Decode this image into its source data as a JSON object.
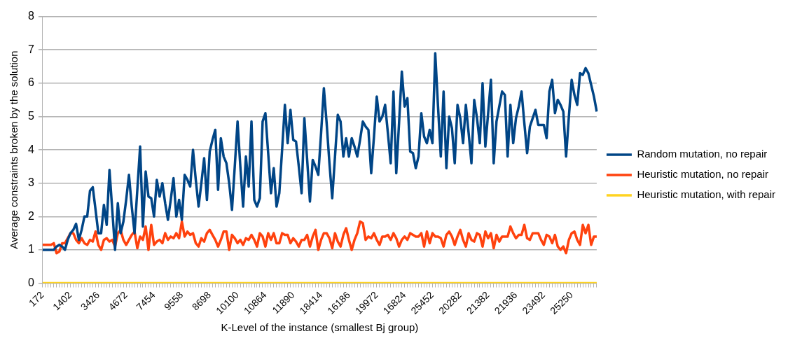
{
  "chart_data": {
    "type": "line",
    "xlabel": "K-Level of the instance (smallest Bj group)",
    "ylabel": "Average constraints broken by the solution",
    "categories": [
      "172",
      null,
      null,
      null,
      null,
      null,
      null,
      null,
      null,
      null,
      "1402",
      null,
      null,
      null,
      null,
      null,
      null,
      null,
      null,
      null,
      "3426",
      null,
      null,
      null,
      null,
      null,
      null,
      null,
      null,
      null,
      "4672",
      null,
      null,
      null,
      null,
      null,
      null,
      null,
      null,
      null,
      "7454",
      null,
      null,
      null,
      null,
      null,
      null,
      null,
      null,
      null,
      "9558",
      null,
      null,
      null,
      null,
      null,
      null,
      null,
      null,
      null,
      "8698",
      null,
      null,
      null,
      null,
      null,
      null,
      null,
      null,
      null,
      "10100",
      null,
      null,
      null,
      null,
      null,
      null,
      null,
      null,
      null,
      "10864",
      null,
      null,
      null,
      null,
      null,
      null,
      null,
      null,
      null,
      "11890",
      null,
      null,
      null,
      null,
      null,
      null,
      null,
      null,
      null,
      "18414",
      null,
      null,
      null,
      null,
      null,
      null,
      null,
      null,
      null,
      "16186",
      null,
      null,
      null,
      null,
      null,
      null,
      null,
      null,
      null,
      "19972",
      null,
      null,
      null,
      null,
      null,
      null,
      null,
      null,
      null,
      "16824",
      null,
      null,
      null,
      null,
      null,
      null,
      null,
      null,
      null,
      "25452",
      null,
      null,
      null,
      null,
      null,
      null,
      null,
      null,
      null,
      "20282",
      null,
      null,
      null,
      null,
      null,
      null,
      null,
      null,
      null,
      "21382",
      null,
      null,
      null,
      null,
      null,
      null,
      null,
      null,
      null,
      "21936",
      null,
      null,
      null,
      null,
      null,
      null,
      null,
      null,
      null,
      "23492",
      null,
      null,
      null,
      null,
      null,
      null,
      null,
      null,
      null,
      "25250",
      null,
      null,
      null,
      null,
      null,
      null,
      null,
      null,
      null
    ],
    "series": [
      {
        "name": "Random mutation, no repair",
        "color": "#004586",
        "values": [
          1.0,
          1.0,
          1.0,
          1.0,
          1.0,
          1.1,
          1.15,
          1.1,
          1.0,
          1.3,
          1.5,
          1.6,
          1.78,
          1.3,
          1.6,
          2.0,
          2.0,
          2.77,
          2.88,
          2.2,
          1.5,
          1.5,
          2.35,
          1.75,
          3.4,
          2.2,
          1.0,
          2.4,
          1.5,
          1.85,
          2.5,
          3.25,
          2.3,
          1.5,
          2.8,
          4.1,
          1.7,
          3.35,
          2.6,
          2.55,
          2.0,
          3.1,
          2.6,
          3.0,
          2.4,
          1.9,
          2.5,
          3.15,
          2.0,
          2.5,
          1.9,
          3.25,
          3.1,
          2.9,
          4.0,
          3.1,
          2.3,
          3.0,
          3.75,
          2.5,
          3.95,
          4.3,
          4.6,
          2.8,
          4.35,
          3.8,
          3.6,
          3.0,
          2.2,
          3.5,
          4.85,
          3.5,
          2.3,
          3.8,
          2.9,
          4.85,
          2.5,
          2.3,
          2.55,
          4.85,
          5.1,
          3.9,
          2.7,
          3.45,
          2.3,
          2.7,
          4.0,
          5.35,
          4.2,
          5.2,
          4.3,
          4.25,
          3.5,
          2.7,
          4.95,
          3.7,
          2.45,
          3.7,
          3.5,
          3.25,
          4.5,
          5.85,
          4.8,
          3.6,
          2.55,
          3.8,
          5.05,
          4.85,
          3.8,
          4.35,
          3.8,
          4.35,
          4.1,
          3.8,
          4.3,
          4.85,
          4.7,
          4.6,
          3.3,
          4.4,
          5.6,
          4.85,
          5.0,
          5.35,
          4.5,
          3.6,
          5.75,
          3.3,
          4.8,
          6.35,
          5.3,
          5.55,
          3.95,
          3.9,
          3.45,
          3.8,
          5.1,
          4.4,
          4.2,
          4.6,
          4.2,
          6.9,
          5.3,
          3.8,
          5.75,
          3.45,
          5.0,
          4.65,
          3.6,
          5.35,
          4.95,
          4.2,
          5.35,
          4.5,
          3.6,
          5.5,
          4.95,
          4.2,
          6.0,
          4.1,
          5.1,
          6.1,
          3.6,
          4.85,
          5.3,
          5.75,
          5.65,
          3.8,
          5.35,
          4.2,
          4.95,
          5.3,
          5.75,
          4.8,
          3.9,
          4.7,
          4.95,
          5.2,
          4.75,
          4.75,
          4.75,
          4.35,
          5.75,
          6.1,
          5.1,
          5.5,
          5.35,
          5.15,
          3.8,
          5.0,
          6.1,
          5.65,
          5.35,
          6.3,
          6.25,
          6.45,
          6.3,
          5.95,
          5.6,
          5.15
        ]
      },
      {
        "name": "Heuristic mutation, no repair",
        "color": "#ff420e",
        "values": [
          1.15,
          1.15,
          1.15,
          1.15,
          1.2,
          0.9,
          0.95,
          1.2,
          1.2,
          1.35,
          1.5,
          1.5,
          1.3,
          1.2,
          1.35,
          1.2,
          1.15,
          1.3,
          1.25,
          1.55,
          1.15,
          1.0,
          1.3,
          1.35,
          1.25,
          1.3,
          1.1,
          1.5,
          1.6,
          1.3,
          1.15,
          1.3,
          1.45,
          1.55,
          1.05,
          1.4,
          1.3,
          1.7,
          1.0,
          1.75,
          1.15,
          1.25,
          1.3,
          1.2,
          1.5,
          1.3,
          1.4,
          1.35,
          1.5,
          1.35,
          1.85,
          1.4,
          1.55,
          1.45,
          1.5,
          1.2,
          1.1,
          1.35,
          1.25,
          1.5,
          1.6,
          1.45,
          1.3,
          1.1,
          1.3,
          1.55,
          1.55,
          1.0,
          1.45,
          1.35,
          1.2,
          1.3,
          1.15,
          1.35,
          1.3,
          1.45,
          1.3,
          1.1,
          1.5,
          1.4,
          1.1,
          1.5,
          1.3,
          1.5,
          1.2,
          1.2,
          1.5,
          1.45,
          1.45,
          1.2,
          1.35,
          1.25,
          1.1,
          1.3,
          1.3,
          1.45,
          1.1,
          1.4,
          1.6,
          1.0,
          1.3,
          1.5,
          1.5,
          1.35,
          1.05,
          1.5,
          1.25,
          1.1,
          1.45,
          1.65,
          1.3,
          1.0,
          1.3,
          1.5,
          1.85,
          1.8,
          1.3,
          1.4,
          1.35,
          1.5,
          1.3,
          1.15,
          1.4,
          1.4,
          1.45,
          1.3,
          1.5,
          1.35,
          1.1,
          1.3,
          1.4,
          1.3,
          1.5,
          1.45,
          1.4,
          1.4,
          1.5,
          1.1,
          1.55,
          1.2,
          1.5,
          1.4,
          1.4,
          1.35,
          1.1,
          1.45,
          1.55,
          1.4,
          1.15,
          1.4,
          1.6,
          1.3,
          1.1,
          1.5,
          1.3,
          1.25,
          1.5,
          1.45,
          1.1,
          1.55,
          1.35,
          1.5,
          1.05,
          1.45,
          1.25,
          1.4,
          1.4,
          1.4,
          1.7,
          1.5,
          1.35,
          1.45,
          1.45,
          1.75,
          1.35,
          1.3,
          1.5,
          1.5,
          1.5,
          1.3,
          1.15,
          1.45,
          1.4,
          1.2,
          1.45,
          1.1,
          1.0,
          1.1,
          0.9,
          1.3,
          1.5,
          1.55,
          1.3,
          1.15,
          1.75,
          1.5,
          1.75,
          1.15,
          1.4,
          1.4
        ]
      },
      {
        "name": "Heuristic mutation, with repair",
        "color": "#ffd320",
        "values": [
          0,
          0,
          0,
          0,
          0,
          0,
          0,
          0,
          0,
          0,
          0,
          0,
          0,
          0,
          0,
          0,
          0,
          0,
          0,
          0,
          0,
          0,
          0,
          0,
          0,
          0,
          0,
          0,
          0,
          0,
          0,
          0,
          0,
          0,
          0,
          0,
          0,
          0,
          0,
          0,
          0,
          0,
          0,
          0,
          0,
          0,
          0,
          0,
          0,
          0,
          0,
          0,
          0,
          0,
          0,
          0,
          0,
          0,
          0,
          0,
          0,
          0,
          0,
          0,
          0,
          0,
          0,
          0,
          0,
          0,
          0,
          0,
          0,
          0,
          0,
          0,
          0,
          0,
          0,
          0,
          0,
          0,
          0,
          0,
          0,
          0,
          0,
          0,
          0,
          0,
          0,
          0,
          0,
          0,
          0,
          0,
          0,
          0,
          0,
          0,
          0,
          0,
          0,
          0,
          0,
          0,
          0,
          0,
          0,
          0,
          0,
          0,
          0,
          0,
          0,
          0,
          0,
          0,
          0,
          0,
          0,
          0,
          0,
          0,
          0,
          0,
          0,
          0,
          0,
          0,
          0,
          0,
          0,
          0,
          0,
          0,
          0,
          0,
          0,
          0,
          0,
          0,
          0,
          0,
          0,
          0,
          0,
          0,
          0,
          0,
          0,
          0,
          0,
          0,
          0,
          0,
          0,
          0,
          0,
          0,
          0,
          0,
          0,
          0,
          0,
          0,
          0,
          0,
          0,
          0,
          0,
          0,
          0,
          0,
          0,
          0,
          0,
          0,
          0,
          0,
          0,
          0,
          0,
          0,
          0,
          0,
          0,
          0,
          0,
          0,
          0,
          0,
          0,
          0,
          0,
          0,
          0,
          0,
          0,
          0
        ]
      }
    ],
    "ylim": [
      0,
      8
    ],
    "yticks": [
      0,
      1,
      2,
      3,
      4,
      5,
      6,
      7,
      8
    ],
    "grid": "y",
    "legend": "right",
    "marker": "none",
    "line_style": "solid"
  }
}
